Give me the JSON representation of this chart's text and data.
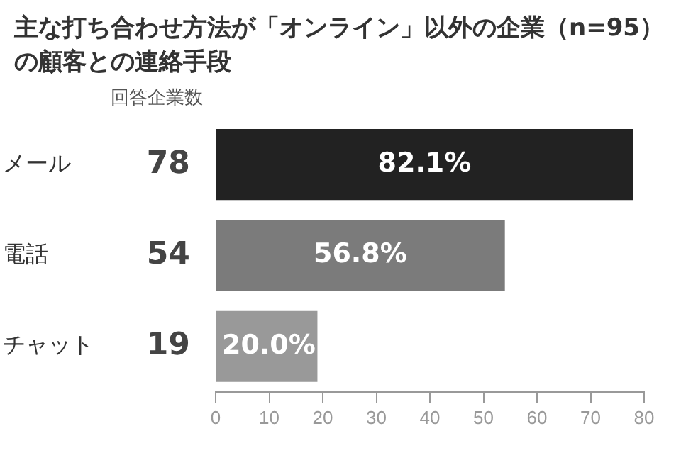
{
  "chart_data": {
    "type": "bar",
    "orientation": "horizontal",
    "title": "主な打ち合わせ方法が「オンライン」以外の企業（n=95）の顧客との連絡手段",
    "annotations": [
      "回答企業数",
      {
        "text": "82.1%",
        "x": 39,
        "y": "メール"
      },
      {
        "text": "56.8%",
        "x": 27,
        "y": "電話"
      },
      {
        "text": "20.0%",
        "x": 9.5,
        "y": "チャット"
      }
    ],
    "categories": [
      "メール",
      "電話",
      "チャット"
    ],
    "values": [
      78,
      54,
      19
    ],
    "colors": [
      "#222222",
      "#7b7b7b",
      "#999999"
    ],
    "value_labels": [
      "78",
      "54",
      "19"
    ],
    "xlim": [
      0,
      80
    ],
    "xticks": [
      0,
      10,
      20,
      30,
      40,
      50,
      60,
      70,
      80
    ],
    "grid": false,
    "legend": false
  }
}
